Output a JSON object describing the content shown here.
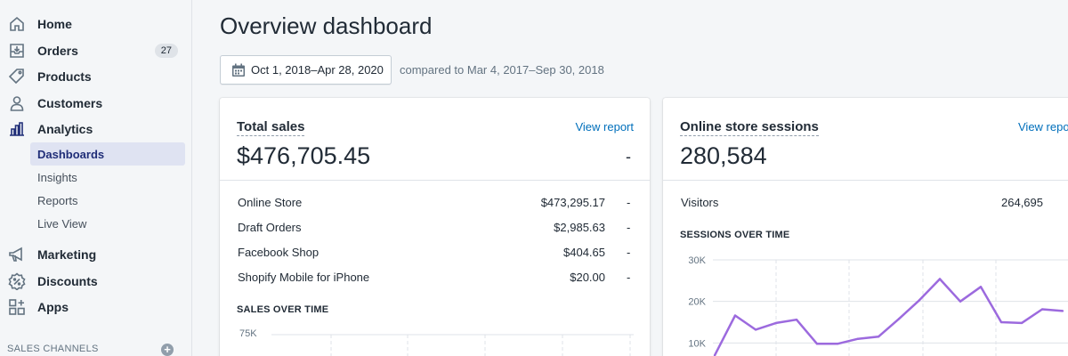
{
  "sidebar": {
    "items": [
      {
        "label": "Home",
        "icon": "home-icon"
      },
      {
        "label": "Orders",
        "icon": "orders-icon",
        "badge": "27"
      },
      {
        "label": "Products",
        "icon": "tag-icon"
      },
      {
        "label": "Customers",
        "icon": "person-icon"
      },
      {
        "label": "Analytics",
        "icon": "bar-chart-icon"
      }
    ],
    "analytics_sub": [
      "Dashboards",
      "Insights",
      "Reports",
      "Live View"
    ],
    "items2": [
      {
        "label": "Marketing",
        "icon": "megaphone-icon"
      },
      {
        "label": "Discounts",
        "icon": "discount-icon"
      },
      {
        "label": "Apps",
        "icon": "apps-icon"
      }
    ],
    "sales_channels_label": "SALES CHANNELS"
  },
  "header": {
    "title": "Overview dashboard",
    "date_range": "Oct 1, 2018–Apr 28, 2020",
    "compare_text": "compared to Mar 4, 2017–Sep 30, 2018"
  },
  "total_sales": {
    "title": "Total sales",
    "link": "View report",
    "value": "$476,705.45",
    "change": "-",
    "rows": [
      {
        "label": "Online Store",
        "value": "$473,295.17",
        "change": "-"
      },
      {
        "label": "Draft Orders",
        "value": "$2,985.63",
        "change": "-"
      },
      {
        "label": "Facebook Shop",
        "value": "$404.65",
        "change": "-"
      },
      {
        "label": "Shopify Mobile for iPhone",
        "value": "$20.00",
        "change": "-"
      }
    ],
    "chart_title": "SALES OVER TIME",
    "chart_tick": "75K"
  },
  "sessions": {
    "title": "Online store sessions",
    "link": "View repo",
    "value": "280,584",
    "visitors_label": "Visitors",
    "visitors_value": "264,695",
    "chart_title": "SESSIONS OVER TIME"
  },
  "chart_data": {
    "type": "line",
    "title": "SESSIONS OVER TIME",
    "ylim": [
      0,
      30000
    ],
    "yticks": [
      "30K",
      "20K",
      "10K"
    ],
    "grid": true,
    "series": [
      {
        "color": "#9c6ade",
        "values": [
          7000,
          16600,
          13200,
          14800,
          15600,
          9800,
          9800,
          11000,
          11500,
          15800,
          20300,
          25400,
          20000,
          23500,
          15000,
          14800,
          18100,
          17700
        ]
      }
    ]
  },
  "colors": {
    "accent_link": "#006fbb",
    "active_nav_bg": "#dfe3f2",
    "line": "#9c6ade"
  }
}
